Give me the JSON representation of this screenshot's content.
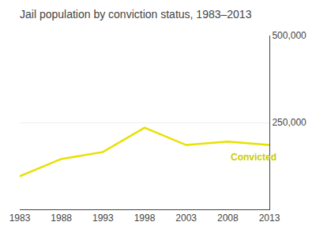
{
  "chart_data": {
    "type": "line",
    "title": "Jail population by conviction status, 1983–2013",
    "x": [
      1983,
      1988,
      1993,
      1998,
      2003,
      2008,
      2013
    ],
    "values": [
      95000,
      145000,
      165000,
      235000,
      185000,
      195000,
      185000
    ],
    "color": "#e8e000",
    "xlim": [
      1983,
      2013
    ],
    "xticks": [
      1983,
      1988,
      1993,
      1998,
      2003,
      2008,
      2013
    ],
    "ylim": [
      0,
      500000
    ],
    "yticks": [
      {
        "value": 250000,
        "label": "250,000"
      },
      {
        "value": 500000,
        "label": "500,000"
      }
    ],
    "grid": true,
    "annotations": [
      {
        "text": "Convicted",
        "x": 2008.2,
        "y": 130000,
        "color": "#cccc00"
      }
    ]
  }
}
